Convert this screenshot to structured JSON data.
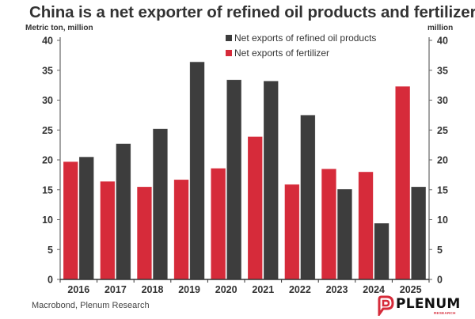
{
  "chart_data": {
    "type": "bar",
    "title": "China is a net exporter of refined oil products and fertilizer",
    "ylabel_left": "Metric ton, million",
    "ylabel_right": "million",
    "xlabel": "",
    "categories": [
      "2016",
      "2017",
      "2018",
      "2019",
      "2020",
      "2021",
      "2022",
      "2023",
      "2024",
      "2025"
    ],
    "ylim": [
      0,
      40
    ],
    "yticks": [
      0,
      5,
      10,
      15,
      20,
      25,
      30,
      35,
      40
    ],
    "grid": false,
    "legend_position": "top-center",
    "series": [
      {
        "name": "Net exports of fertilizer",
        "color": "#d62b3a",
        "values": [
          19.7,
          16.4,
          15.5,
          16.7,
          18.6,
          23.9,
          15.9,
          18.5,
          18.0,
          32.3
        ]
      },
      {
        "name": "Net exports of refined oil products",
        "color": "#3d3d3d",
        "values": [
          20.5,
          22.7,
          25.2,
          36.4,
          33.4,
          33.2,
          27.5,
          15.1,
          9.4,
          15.5
        ]
      }
    ],
    "legend_order": [
      1,
      0
    ]
  },
  "footer": {
    "source": "Macrobond, Plenum Research",
    "logo_name": "PLENUM",
    "logo_sub": "RESEARCH"
  }
}
